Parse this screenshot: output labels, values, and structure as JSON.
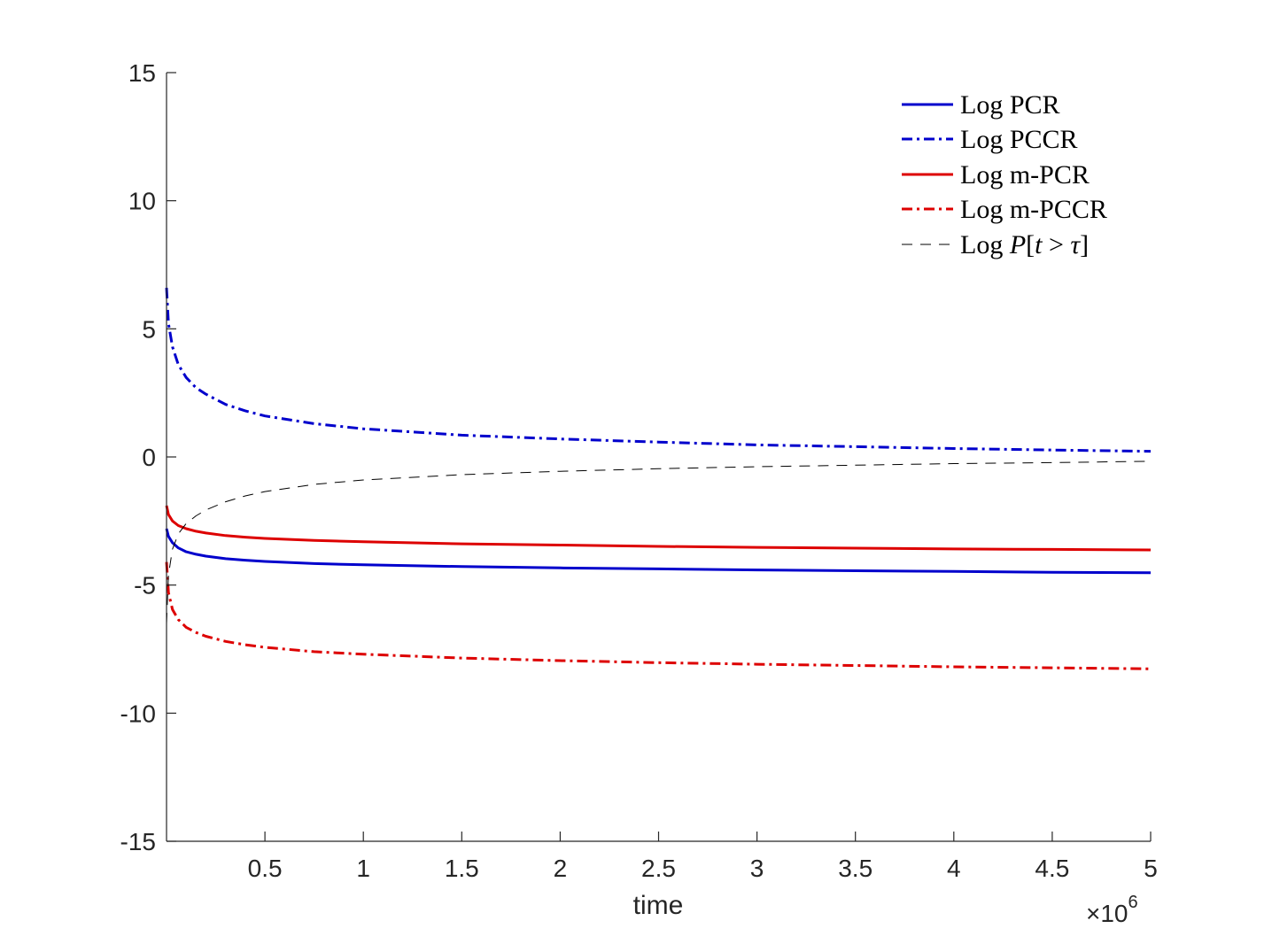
{
  "chart_data": {
    "type": "line",
    "title": "",
    "xlabel": "time",
    "ylabel": "",
    "x_exponent_label": "×10",
    "x_exponent_power": "6",
    "xlim": [
      0,
      5
    ],
    "ylim": [
      -15,
      15
    ],
    "x_unit_scale": 1000000,
    "xticks": [
      0.5,
      1,
      1.5,
      2,
      2.5,
      3,
      3.5,
      4,
      4.5,
      5
    ],
    "xtick_labels": [
      "0.5",
      "1",
      "1.5",
      "2",
      "2.5",
      "3",
      "3.5",
      "4",
      "4.5",
      "5"
    ],
    "yticks": [
      15,
      10,
      5,
      0,
      -5,
      -10,
      -15
    ],
    "ytick_labels": [
      "15",
      "10",
      "5",
      "0",
      "-5",
      "-10",
      "-15"
    ],
    "grid": false,
    "legend_position": "top-right",
    "x": [
      0.0,
      0.01,
      0.03,
      0.06,
      0.1,
      0.15,
      0.2,
      0.3,
      0.4,
      0.5,
      0.75,
      1.0,
      1.5,
      2.0,
      2.5,
      3.0,
      3.5,
      4.0,
      4.5,
      5.0
    ],
    "series": [
      {
        "name": "Log PCR",
        "color": "#0000cc",
        "style": "solid",
        "values": [
          -2.8,
          -3.1,
          -3.35,
          -3.55,
          -3.7,
          -3.8,
          -3.87,
          -3.97,
          -4.03,
          -4.08,
          -4.16,
          -4.21,
          -4.28,
          -4.33,
          -4.37,
          -4.41,
          -4.44,
          -4.47,
          -4.5,
          -4.52
        ]
      },
      {
        "name": "Log PCCR",
        "color": "#0000cc",
        "style": "dashdot",
        "values": [
          6.6,
          5.2,
          4.3,
          3.6,
          3.1,
          2.7,
          2.45,
          2.05,
          1.8,
          1.6,
          1.3,
          1.1,
          0.85,
          0.7,
          0.58,
          0.47,
          0.4,
          0.33,
          0.27,
          0.22
        ]
      },
      {
        "name": "Log m-PCR",
        "color": "#dd0000",
        "style": "solid",
        "values": [
          -1.9,
          -2.25,
          -2.5,
          -2.68,
          -2.8,
          -2.9,
          -2.97,
          -3.07,
          -3.13,
          -3.18,
          -3.26,
          -3.31,
          -3.39,
          -3.44,
          -3.49,
          -3.53,
          -3.56,
          -3.59,
          -3.61,
          -3.63
        ]
      },
      {
        "name": "Log m-PCCR",
        "color": "#dd0000",
        "style": "dashdot",
        "values": [
          -4.1,
          -5.3,
          -5.95,
          -6.35,
          -6.65,
          -6.85,
          -7.0,
          -7.2,
          -7.33,
          -7.43,
          -7.6,
          -7.7,
          -7.85,
          -7.95,
          -8.03,
          -8.09,
          -8.14,
          -8.19,
          -8.23,
          -8.27
        ]
      },
      {
        "name": "Log P[t > τ]",
        "legend_parts": {
          "prefix": "Log ",
          "P": "P",
          "open": "[",
          "t": "t",
          "gt": " > ",
          "tau": "τ",
          "close": "]"
        },
        "color": "#000000",
        "style": "dashed",
        "values": [
          -6.5,
          -4.6,
          -3.6,
          -3.0,
          -2.6,
          -2.3,
          -2.07,
          -1.75,
          -1.52,
          -1.35,
          -1.07,
          -0.9,
          -0.69,
          -0.56,
          -0.46,
          -0.38,
          -0.32,
          -0.26,
          -0.22,
          -0.17
        ]
      }
    ]
  }
}
